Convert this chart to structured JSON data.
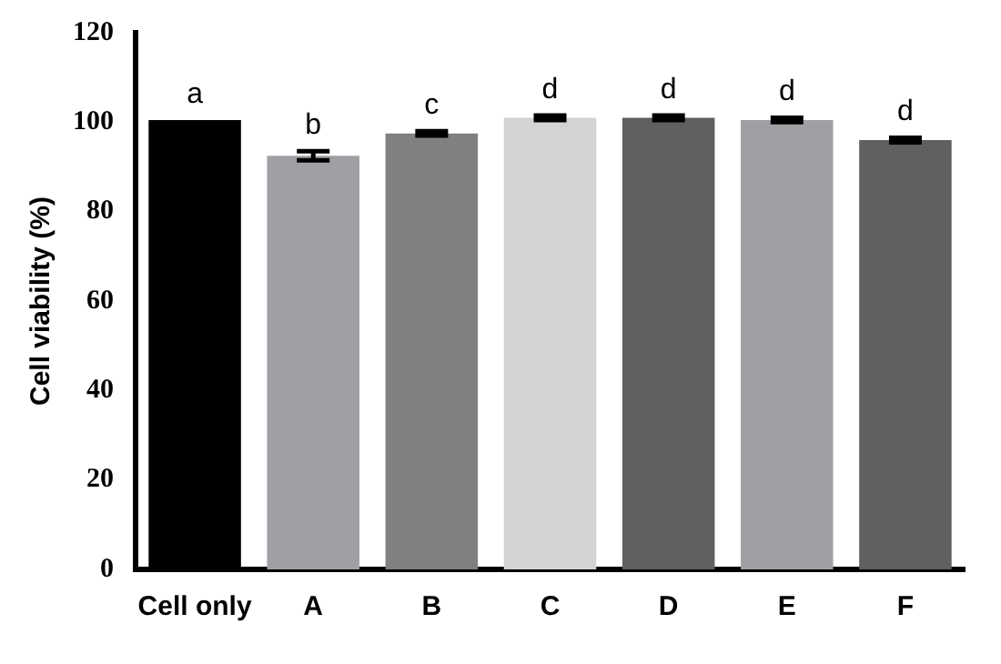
{
  "chart_data": {
    "type": "bar",
    "ylabel": "Cell viability (%)",
    "categories": [
      "Cell only",
      "A",
      "B",
      "C",
      "D",
      "E",
      "F"
    ],
    "values": [
      100.5,
      92.5,
      97.5,
      101,
      101,
      100.5,
      96
    ],
    "errors": [
      null,
      1,
      0.5,
      0.5,
      0.5,
      0.5,
      0.5
    ],
    "colors": [
      "#000000",
      "#a0a0a4",
      "#808080",
      "#d3d3d3",
      "#606060",
      "#a0a0a4",
      "#606060"
    ],
    "ylim": [
      0,
      120
    ],
    "yticks": [
      0,
      20,
      40,
      60,
      80,
      100,
      120
    ],
    "grid": false,
    "legend": false,
    "annotations": [
      {
        "text": "a",
        "x": "Cell only",
        "y": 100.5
      },
      {
        "text": "b",
        "x": "A",
        "y": 93.5
      },
      {
        "text": "c",
        "x": "B",
        "y": 98
      },
      {
        "text": "d",
        "x": "C",
        "y": 101.5
      },
      {
        "text": "d",
        "x": "D",
        "y": 101.5
      },
      {
        "text": "d",
        "x": "E",
        "y": 101
      },
      {
        "text": "d",
        "x": "F",
        "y": 96.5
      }
    ]
  }
}
